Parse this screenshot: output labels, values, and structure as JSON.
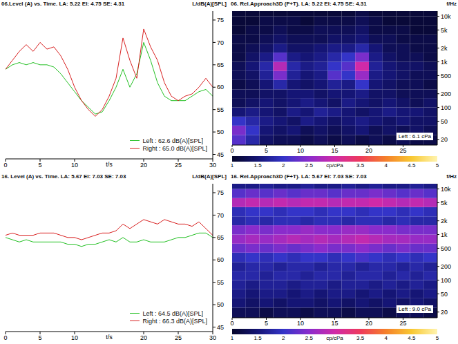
{
  "chart_data": [
    {
      "type": "line",
      "title": "06.Level (A) vs. Time. LA: 5.22 EI: 4.75 SE: 4.31",
      "x_label": "t/s",
      "y_label": "L/dB(A)[SPL]",
      "x": [
        0,
        1,
        2,
        3,
        4,
        5,
        6,
        7,
        8,
        9,
        10,
        11,
        12,
        13,
        14,
        15,
        16,
        17,
        18,
        19,
        20,
        21,
        22,
        23,
        24,
        25,
        26,
        27,
        28,
        29,
        30
      ],
      "series": [
        {
          "name": "Left : 62.6 dB(A)[SPL]",
          "color": "#22c022",
          "values": [
            64,
            65,
            65.5,
            65,
            65.5,
            65,
            65,
            64.5,
            63,
            61,
            59,
            57,
            55.5,
            54,
            54.5,
            57,
            60,
            64,
            60,
            63,
            70,
            66,
            61,
            58,
            57,
            57,
            57,
            58,
            59,
            59.5,
            58
          ]
        },
        {
          "name": "Right : 65.0 dB(A)[SPL]",
          "color": "#d82020",
          "values": [
            64,
            66,
            68,
            69.5,
            68,
            70,
            68.5,
            69,
            67,
            64,
            60,
            57,
            55,
            53.5,
            55,
            58,
            62,
            71,
            66,
            62,
            73,
            69,
            66,
            61,
            58,
            57,
            58,
            58.5,
            60,
            62,
            60
          ]
        }
      ],
      "xlim": [
        0,
        30
      ],
      "xticks": [
        0,
        5,
        10,
        20,
        25,
        30
      ],
      "ylim": [
        44,
        77
      ],
      "yticks": [
        45,
        50,
        55,
        60,
        65,
        70,
        75
      ],
      "legend": "lower right"
    },
    {
      "type": "heatmap",
      "title": "06. Rel.Approach3D (F+T). LA: 5.22 EI: 4.75 SE: 4.31",
      "y_label": "f/Hz",
      "x_edges": [
        0,
        2,
        4,
        6,
        8,
        10,
        12,
        14,
        16,
        18,
        20,
        22,
        24,
        26,
        28,
        30
      ],
      "y_edges": [
        15,
        25,
        40,
        63,
        100,
        160,
        250,
        400,
        630,
        1000,
        1600,
        2500,
        4000,
        6300,
        10000,
        13000
      ],
      "cells": [
        [
          2.2,
          1.8,
          1.4,
          1.3,
          1.3,
          1.2,
          1.3,
          1.2,
          1.3,
          1.2,
          1.3,
          1.2,
          1.3,
          1.2,
          1.2
        ],
        [
          2.4,
          2.0,
          1.5,
          1.4,
          1.5,
          1.3,
          1.4,
          1.3,
          1.4,
          1.5,
          1.3,
          1.4,
          1.3,
          1.4,
          1.3
        ],
        [
          2.0,
          1.8,
          1.6,
          1.5,
          1.4,
          1.6,
          1.5,
          1.4,
          1.5,
          1.6,
          1.5,
          1.4,
          1.5,
          1.4,
          1.4
        ],
        [
          1.5,
          1.6,
          1.5,
          1.4,
          1.6,
          1.5,
          1.7,
          1.6,
          1.5,
          1.4,
          1.5,
          1.6,
          1.5,
          1.5,
          1.4
        ],
        [
          1.3,
          1.4,
          1.5,
          1.4,
          1.5,
          1.6,
          1.5,
          1.4,
          1.6,
          1.5,
          1.4,
          1.5,
          1.4,
          1.3,
          1.4
        ],
        [
          1.3,
          1.3,
          1.4,
          1.4,
          1.5,
          1.5,
          1.4,
          1.5,
          1.5,
          1.6,
          1.4,
          1.4,
          1.3,
          1.3,
          1.3
        ],
        [
          1.2,
          1.3,
          1.5,
          1.8,
          1.5,
          1.4,
          1.5,
          1.7,
          1.6,
          2.0,
          1.5,
          1.4,
          1.3,
          1.3,
          1.2
        ],
        [
          1.3,
          1.4,
          1.7,
          2.4,
          1.7,
          1.5,
          1.6,
          2.2,
          2.0,
          2.6,
          1.6,
          1.5,
          1.4,
          1.3,
          1.3
        ],
        [
          1.3,
          1.5,
          1.8,
          2.8,
          1.8,
          1.6,
          1.7,
          2.0,
          2.2,
          3.0,
          1.7,
          1.5,
          1.4,
          1.4,
          1.3
        ],
        [
          1.2,
          1.4,
          1.6,
          2.2,
          1.6,
          1.5,
          1.6,
          1.8,
          2.0,
          2.4,
          1.6,
          1.4,
          1.3,
          1.3,
          1.2
        ],
        [
          1.2,
          1.3,
          1.4,
          1.6,
          1.4,
          1.4,
          1.5,
          1.6,
          1.6,
          1.8,
          1.5,
          1.3,
          1.3,
          1.2,
          1.2
        ],
        [
          1.2,
          1.2,
          1.3,
          1.4,
          1.3,
          1.3,
          1.3,
          1.4,
          1.4,
          1.5,
          1.3,
          1.3,
          1.2,
          1.2,
          1.2
        ],
        [
          1.1,
          1.2,
          1.2,
          1.3,
          1.2,
          1.2,
          1.3,
          1.3,
          1.3,
          1.4,
          1.2,
          1.2,
          1.2,
          1.1,
          1.1
        ],
        [
          1.1,
          1.1,
          1.2,
          1.2,
          1.2,
          1.1,
          1.2,
          1.2,
          1.2,
          1.3,
          1.2,
          1.1,
          1.1,
          1.1,
          1.1
        ],
        [
          1.1,
          1.1,
          1.1,
          1.1,
          1.1,
          1.1,
          1.1,
          1.1,
          1.1,
          1.2,
          1.1,
          1.1,
          1.1,
          1.1,
          1.1
        ]
      ],
      "xlim": [
        0,
        30
      ],
      "xticks": [
        0,
        5,
        10,
        15,
        20,
        25
      ],
      "ylim": [
        15,
        13000
      ],
      "yticks": [
        20,
        50,
        100,
        200,
        500,
        {
          "value": 1000,
          "label": "1k"
        },
        {
          "value": 2000,
          "label": "2k"
        },
        {
          "value": 5000,
          "label": "5k"
        },
        {
          "value": 10000,
          "label": "10k"
        }
      ],
      "log": "y",
      "colorbar": {
        "range": [
          1,
          5
        ],
        "ticks": [
          1,
          1.5,
          2,
          2.5,
          3.5,
          4,
          4.5,
          5
        ],
        "label": "cp/cPa"
      },
      "annotations": [
        "Left : 6.1 cPa"
      ]
    },
    {
      "type": "line",
      "title": "16. Level (A) vs. Time. LA: 5.67 EI: 7.03 SE: 7.03",
      "x_label": "t/s",
      "y_label": "L/dB(A)[SPL]",
      "x": [
        0,
        1,
        2,
        3,
        4,
        5,
        6,
        7,
        8,
        9,
        10,
        11,
        12,
        13,
        14,
        15,
        16,
        17,
        18,
        19,
        20,
        21,
        22,
        23,
        24,
        25,
        26,
        27,
        28,
        29,
        30
      ],
      "series": [
        {
          "name": "Left : 64.5 dB(A)[SPL]",
          "color": "#22c022",
          "values": [
            65,
            64.5,
            64,
            64.5,
            64,
            64,
            64,
            64,
            64,
            63.5,
            63.5,
            63,
            63.5,
            63.5,
            64,
            64.5,
            64,
            65,
            64,
            64,
            64.5,
            64,
            64,
            64,
            64.5,
            65,
            65,
            65.5,
            66,
            66,
            65
          ]
        },
        {
          "name": "Right : 66.3 dB(A)[SPL]",
          "color": "#d82020",
          "values": [
            65.5,
            66,
            65.5,
            65.5,
            65.5,
            66,
            66,
            66,
            65.5,
            65,
            65,
            64.5,
            65,
            65.5,
            66,
            66,
            66.5,
            68,
            67,
            68,
            69,
            68.5,
            68,
            69,
            68.5,
            68,
            68,
            67.5,
            68.5,
            67,
            65.5
          ]
        }
      ],
      "xlim": [
        0,
        30
      ],
      "xticks": [
        0,
        5,
        10,
        20,
        25,
        30
      ],
      "ylim": [
        44,
        77
      ],
      "yticks": [
        45,
        50,
        55,
        60,
        65,
        70,
        75
      ],
      "legend": "lower right"
    },
    {
      "type": "heatmap",
      "title": "16. Rel.Approach3D (F+T). LA: 5.67 EI: 7.03 SE: 7.03",
      "y_label": "f/Hz",
      "x_edges": [
        0,
        2,
        4,
        6,
        8,
        10,
        12,
        14,
        16,
        18,
        20,
        22,
        24,
        26,
        28,
        30
      ],
      "y_edges": [
        15,
        25,
        40,
        63,
        100,
        160,
        250,
        400,
        630,
        1000,
        1600,
        2500,
        4000,
        6300,
        10000,
        13000
      ],
      "cells": [
        [
          1.3,
          1.3,
          1.2,
          1.3,
          1.3,
          1.2,
          1.3,
          1.3,
          1.2,
          1.3,
          1.3,
          1.2,
          1.3,
          1.3,
          1.2
        ],
        [
          1.5,
          1.4,
          1.5,
          1.4,
          1.5,
          1.5,
          1.4,
          1.5,
          1.4,
          1.5,
          1.4,
          1.5,
          1.4,
          1.5,
          1.4
        ],
        [
          1.6,
          1.5,
          1.6,
          1.6,
          1.5,
          1.6,
          1.5,
          1.6,
          1.6,
          1.5,
          1.6,
          1.5,
          1.6,
          1.5,
          1.6
        ],
        [
          1.7,
          1.6,
          1.7,
          1.7,
          1.6,
          1.7,
          1.7,
          1.6,
          1.7,
          1.7,
          1.6,
          1.7,
          1.6,
          1.7,
          1.6
        ],
        [
          1.8,
          1.8,
          1.7,
          1.8,
          1.8,
          1.7,
          1.8,
          1.8,
          1.7,
          1.8,
          1.8,
          1.7,
          1.8,
          1.7,
          1.8
        ],
        [
          1.7,
          1.8,
          1.8,
          1.7,
          1.8,
          1.8,
          1.7,
          1.8,
          1.8,
          1.7,
          1.8,
          1.8,
          1.7,
          1.8,
          1.7
        ],
        [
          1.9,
          2.0,
          1.9,
          2.0,
          1.9,
          2.0,
          2.0,
          1.9,
          2.0,
          2.1,
          2.0,
          1.9,
          2.0,
          1.9,
          2.0
        ],
        [
          2.3,
          2.4,
          2.3,
          2.4,
          2.3,
          2.4,
          2.5,
          2.4,
          2.4,
          2.5,
          2.4,
          2.3,
          2.4,
          2.3,
          2.3
        ],
        [
          2.6,
          2.7,
          2.6,
          2.7,
          2.8,
          2.7,
          2.8,
          2.7,
          2.8,
          2.9,
          2.8,
          2.7,
          2.7,
          2.6,
          2.6
        ],
        [
          2.4,
          2.5,
          2.4,
          2.5,
          2.5,
          2.6,
          2.5,
          2.5,
          2.6,
          2.6,
          2.5,
          2.5,
          2.4,
          2.4,
          2.4
        ],
        [
          1.8,
          1.9,
          1.8,
          1.9,
          1.9,
          1.8,
          1.9,
          1.9,
          1.8,
          1.9,
          1.9,
          1.8,
          1.9,
          1.8,
          1.8
        ],
        [
          1.9,
          2.0,
          2.0,
          1.9,
          2.0,
          2.0,
          1.9,
          2.0,
          2.0,
          1.9,
          2.0,
          2.0,
          1.9,
          2.0,
          1.9
        ],
        [
          2.8,
          2.9,
          2.8,
          2.9,
          2.8,
          2.9,
          2.9,
          2.8,
          2.9,
          2.9,
          3.0,
          2.9,
          2.8,
          2.9,
          2.8
        ],
        [
          2.2,
          2.3,
          2.2,
          2.3,
          2.2,
          2.3,
          2.3,
          2.2,
          2.3,
          2.3,
          2.4,
          2.3,
          2.2,
          2.3,
          2.2
        ],
        [
          1.6,
          1.6,
          1.7,
          1.6,
          1.6,
          1.7,
          1.6,
          1.6,
          1.7,
          1.6,
          1.7,
          1.6,
          1.6,
          1.7,
          1.6
        ]
      ],
      "xlim": [
        0,
        30
      ],
      "xticks": [
        0,
        5,
        10,
        15,
        20,
        25
      ],
      "ylim": [
        15,
        13000
      ],
      "yticks": [
        20,
        50,
        100,
        200,
        500,
        {
          "value": 1000,
          "label": "1k"
        },
        {
          "value": 2000,
          "label": "2k"
        },
        {
          "value": 5000,
          "label": "5k"
        },
        {
          "value": 10000,
          "label": "10k"
        }
      ],
      "log": "y",
      "colorbar": {
        "range": [
          1,
          5
        ],
        "ticks": [
          1,
          1.5,
          2,
          2.5,
          3.5,
          4,
          4.5,
          5
        ],
        "label": "cp/cPa"
      },
      "annotations": [
        "Left : 9.0 cPa"
      ]
    }
  ]
}
